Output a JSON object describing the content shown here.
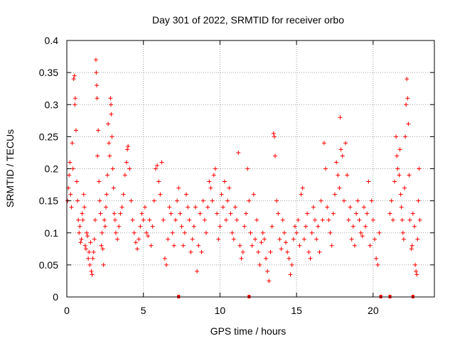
{
  "chart_data": {
    "type": "scatter",
    "title": "Day 301 of 2022, SRMTID for receiver orbo",
    "xlabel": "GPS time / hours",
    "ylabel": "SRMTID / TECUs",
    "xlim": [
      0,
      24
    ],
    "ylim": [
      0,
      0.4
    ],
    "xticks": [
      0,
      5,
      10,
      15,
      20
    ],
    "xtick_labels": [
      "0",
      "5",
      "10",
      "15",
      "20"
    ],
    "yticks": [
      0,
      0.05,
      0.1,
      0.15,
      0.2,
      0.25,
      0.3,
      0.35,
      0.4
    ],
    "ytick_labels": [
      "0",
      "0.05",
      "0.1",
      "0.15",
      "0.2",
      "0.25",
      "0.3",
      "0.35",
      "0.4"
    ],
    "grid": true,
    "marker": "+",
    "color": "#ff0000",
    "axis_color": "#000000",
    "grid_color": "#a0a0a0",
    "series": [
      {
        "name": "SRMTID",
        "points": [
          [
            0.05,
            0.15
          ],
          [
            0.1,
            0.17
          ],
          [
            0.15,
            0.19
          ],
          [
            0.2,
            0.21
          ],
          [
            0.25,
            0.16
          ],
          [
            0.3,
            0.14
          ],
          [
            0.35,
            0.24
          ],
          [
            0.4,
            0.2
          ],
          [
            0.45,
            0.34
          ],
          [
            0.5,
            0.345
          ],
          [
            0.52,
            0.3
          ],
          [
            0.55,
            0.31
          ],
          [
            0.6,
            0.26
          ],
          [
            0.65,
            0.18
          ],
          [
            0.7,
            0.15
          ],
          [
            0.75,
            0.12
          ],
          [
            0.8,
            0.1
          ],
          [
            0.85,
            0.11
          ],
          [
            0.9,
            0.085
          ],
          [
            0.95,
            0.09
          ],
          [
            1.0,
            0.13
          ],
          [
            1.05,
            0.12
          ],
          [
            1.1,
            0.16
          ],
          [
            1.15,
            0.14
          ],
          [
            1.2,
            0.08
          ],
          [
            1.25,
            0.075
          ],
          [
            1.3,
            0.1
          ],
          [
            1.35,
            0.095
          ],
          [
            1.4,
            0.06
          ],
          [
            1.45,
            0.07
          ],
          [
            1.5,
            0.05
          ],
          [
            1.55,
            0.085
          ],
          [
            1.6,
            0.04
          ],
          [
            1.65,
            0.035
          ],
          [
            1.7,
            0.06
          ],
          [
            1.75,
            0.07
          ],
          [
            1.8,
            0.09
          ],
          [
            1.85,
            0.12
          ],
          [
            1.9,
            0.37
          ],
          [
            1.92,
            0.35
          ],
          [
            1.95,
            0.33
          ],
          [
            1.97,
            0.31
          ],
          [
            2.0,
            0.22
          ],
          [
            2.05,
            0.26
          ],
          [
            2.1,
            0.18
          ],
          [
            2.15,
            0.15
          ],
          [
            2.2,
            0.13
          ],
          [
            2.25,
            0.08
          ],
          [
            2.3,
            0.1
          ],
          [
            2.35,
            0.075
          ],
          [
            2.4,
            0.05
          ],
          [
            2.45,
            0.12
          ],
          [
            2.5,
            0.11
          ],
          [
            2.55,
            0.14
          ],
          [
            2.6,
            0.16
          ],
          [
            2.65,
            0.19
          ],
          [
            2.7,
            0.27
          ],
          [
            2.75,
            0.24
          ],
          [
            2.8,
            0.22
          ],
          [
            2.85,
            0.31
          ],
          [
            2.88,
            0.3
          ],
          [
            2.9,
            0.285
          ],
          [
            2.95,
            0.25
          ],
          [
            3.0,
            0.2
          ],
          [
            3.05,
            0.17
          ],
          [
            3.1,
            0.13
          ],
          [
            3.15,
            0.12
          ],
          [
            3.2,
            0.1
          ],
          [
            3.3,
            0.09
          ],
          [
            3.4,
            0.11
          ],
          [
            3.5,
            0.13
          ],
          [
            3.6,
            0.14
          ],
          [
            3.7,
            0.16
          ],
          [
            3.8,
            0.19
          ],
          [
            3.9,
            0.21
          ],
          [
            3.95,
            0.23
          ],
          [
            4.0,
            0.235
          ],
          [
            4.1,
            0.2
          ],
          [
            4.2,
            0.15
          ],
          [
            4.3,
            0.12
          ],
          [
            4.4,
            0.1
          ],
          [
            4.5,
            0.085
          ],
          [
            4.6,
            0.075
          ],
          [
            4.7,
            0.09
          ],
          [
            4.8,
            0.11
          ],
          [
            4.9,
            0.13
          ],
          [
            5.0,
            0.12
          ],
          [
            5.1,
            0.14
          ],
          [
            5.2,
            0.1
          ],
          [
            5.3,
            0.095
          ],
          [
            5.4,
            0.12
          ],
          [
            5.5,
            0.08
          ],
          [
            5.6,
            0.11
          ],
          [
            5.7,
            0.15
          ],
          [
            5.8,
            0.2
          ],
          [
            5.9,
            0.205
          ],
          [
            6.0,
            0.18
          ],
          [
            6.1,
            0.16
          ],
          [
            6.2,
            0.21
          ],
          [
            6.3,
            0.12
          ],
          [
            6.4,
            0.06
          ],
          [
            6.5,
            0.05
          ],
          [
            6.6,
            0.09
          ],
          [
            6.7,
            0.14
          ],
          [
            6.8,
            0.13
          ],
          [
            6.9,
            0.1
          ],
          [
            7.0,
            0.08
          ],
          [
            7.1,
            0.12
          ],
          [
            7.2,
            0.15
          ],
          [
            7.3,
            0.17
          ],
          [
            7.4,
            0.13
          ],
          [
            7.5,
            0.11
          ],
          [
            7.6,
            0.08
          ],
          [
            7.7,
            0.1
          ],
          [
            7.8,
            0.16
          ],
          [
            7.9,
            0.14
          ],
          [
            8.0,
            0.12
          ],
          [
            8.1,
            0.07
          ],
          [
            8.2,
            0.09
          ],
          [
            8.3,
            0.11
          ],
          [
            8.4,
            0.14
          ],
          [
            8.5,
            0.04
          ],
          [
            8.6,
            0.08
          ],
          [
            8.7,
            0.13
          ],
          [
            8.8,
            0.07
          ],
          [
            8.9,
            0.15
          ],
          [
            9.0,
            0.12
          ],
          [
            9.1,
            0.1
          ],
          [
            9.2,
            0.14
          ],
          [
            9.3,
            0.18
          ],
          [
            9.4,
            0.17
          ],
          [
            9.5,
            0.15
          ],
          [
            9.6,
            0.19
          ],
          [
            9.7,
            0.2
          ],
          [
            9.8,
            0.13
          ],
          [
            9.9,
            0.09
          ],
          [
            10.0,
            0.11
          ],
          [
            10.1,
            0.16
          ],
          [
            10.2,
            0.14
          ],
          [
            10.3,
            0.18
          ],
          [
            10.4,
            0.12
          ],
          [
            10.5,
            0.15
          ],
          [
            10.6,
            0.17
          ],
          [
            10.7,
            0.13
          ],
          [
            10.8,
            0.1
          ],
          [
            10.9,
            0.09
          ],
          [
            11.0,
            0.14
          ],
          [
            11.1,
            0.12
          ],
          [
            11.2,
            0.225
          ],
          [
            11.3,
            0.08
          ],
          [
            11.4,
            0.06
          ],
          [
            11.5,
            0.07
          ],
          [
            11.6,
            0.11
          ],
          [
            11.7,
            0.13
          ],
          [
            11.8,
            0.2
          ],
          [
            11.9,
            0.15
          ],
          [
            12.0,
            0.1
          ],
          [
            12.1,
            0.08
          ],
          [
            12.2,
            0.16
          ],
          [
            12.3,
            0.09
          ],
          [
            12.4,
            0.12
          ],
          [
            12.5,
            0.07
          ],
          [
            12.6,
            0.05
          ],
          [
            12.7,
            0.085
          ],
          [
            12.8,
            0.1
          ],
          [
            12.9,
            0.09
          ],
          [
            13.0,
            0.06
          ],
          [
            13.1,
            0.04
          ],
          [
            13.2,
            0.025
          ],
          [
            13.3,
            0.07
          ],
          [
            13.4,
            0.11
          ],
          [
            13.5,
            0.255
          ],
          [
            13.55,
            0.25
          ],
          [
            13.6,
            0.22
          ],
          [
            13.7,
            0.15
          ],
          [
            13.8,
            0.13
          ],
          [
            13.9,
            0.09
          ],
          [
            14.0,
            0.075
          ],
          [
            14.1,
            0.12
          ],
          [
            14.2,
            0.1
          ],
          [
            14.3,
            0.085
          ],
          [
            14.4,
            0.07
          ],
          [
            14.5,
            0.06
          ],
          [
            14.6,
            0.035
          ],
          [
            14.7,
            0.05
          ],
          [
            14.8,
            0.09
          ],
          [
            14.9,
            0.11
          ],
          [
            15.0,
            0.1
          ],
          [
            15.1,
            0.12
          ],
          [
            15.2,
            0.08
          ],
          [
            15.3,
            0.16
          ],
          [
            15.4,
            0.17
          ],
          [
            15.5,
            0.09
          ],
          [
            15.6,
            0.11
          ],
          [
            15.7,
            0.13
          ],
          [
            15.8,
            0.07
          ],
          [
            15.9,
            0.06
          ],
          [
            16.0,
            0.1
          ],
          [
            16.1,
            0.14
          ],
          [
            16.2,
            0.12
          ],
          [
            16.3,
            0.09
          ],
          [
            16.4,
            0.11
          ],
          [
            16.5,
            0.07
          ],
          [
            16.6,
            0.15
          ],
          [
            16.7,
            0.12
          ],
          [
            16.8,
            0.24
          ],
          [
            16.9,
            0.2
          ],
          [
            17.0,
            0.14
          ],
          [
            17.1,
            0.12
          ],
          [
            17.2,
            0.1
          ],
          [
            17.3,
            0.08
          ],
          [
            17.4,
            0.13
          ],
          [
            17.5,
            0.16
          ],
          [
            17.6,
            0.21
          ],
          [
            17.7,
            0.19
          ],
          [
            17.8,
            0.17
          ],
          [
            17.85,
            0.28
          ],
          [
            17.9,
            0.23
          ],
          [
            18.0,
            0.22
          ],
          [
            18.1,
            0.15
          ],
          [
            18.2,
            0.24
          ],
          [
            18.3,
            0.19
          ],
          [
            18.4,
            0.12
          ],
          [
            18.5,
            0.14
          ],
          [
            18.6,
            0.09
          ],
          [
            18.7,
            0.11
          ],
          [
            18.8,
            0.08
          ],
          [
            18.9,
            0.13
          ],
          [
            19.0,
            0.15
          ],
          [
            19.1,
            0.12
          ],
          [
            19.2,
            0.1
          ],
          [
            19.3,
            0.095
          ],
          [
            19.4,
            0.14
          ],
          [
            19.5,
            0.11
          ],
          [
            19.6,
            0.13
          ],
          [
            19.7,
            0.18
          ],
          [
            19.8,
            0.08
          ],
          [
            19.9,
            0.15
          ],
          [
            20.0,
            0.12
          ],
          [
            20.1,
            0.09
          ],
          [
            20.2,
            0.06
          ],
          [
            20.3,
            0.05
          ],
          [
            20.4,
            0.1
          ],
          [
            21.1,
            0.13
          ],
          [
            21.2,
            0.15
          ],
          [
            21.3,
            0.12
          ],
          [
            21.4,
            0.18
          ],
          [
            21.5,
            0.25
          ],
          [
            21.55,
            0.22
          ],
          [
            21.6,
            0.2
          ],
          [
            21.7,
            0.19
          ],
          [
            21.75,
            0.23
          ],
          [
            21.8,
            0.16
          ],
          [
            21.85,
            0.14
          ],
          [
            21.9,
            0.12
          ],
          [
            21.95,
            0.1
          ],
          [
            22.0,
            0.09
          ],
          [
            22.05,
            0.17
          ],
          [
            22.1,
            0.25
          ],
          [
            22.15,
            0.3
          ],
          [
            22.2,
            0.34
          ],
          [
            22.25,
            0.31
          ],
          [
            22.3,
            0.27
          ],
          [
            22.35,
            0.19
          ],
          [
            22.4,
            0.12
          ],
          [
            22.5,
            0.075
          ],
          [
            22.55,
            0.08
          ],
          [
            22.6,
            0.13
          ],
          [
            22.7,
            0.11
          ],
          [
            22.75,
            0.05
          ],
          [
            22.8,
            0.04
          ],
          [
            22.85,
            0.035
          ],
          [
            22.9,
            0.09
          ],
          [
            22.95,
            0.15
          ],
          [
            23.0,
            0.2
          ],
          [
            23.05,
            0.12
          ]
        ]
      }
    ],
    "baseline_markers_x": [
      7.3,
      11.9,
      20.5,
      21.1,
      22.6
    ]
  }
}
